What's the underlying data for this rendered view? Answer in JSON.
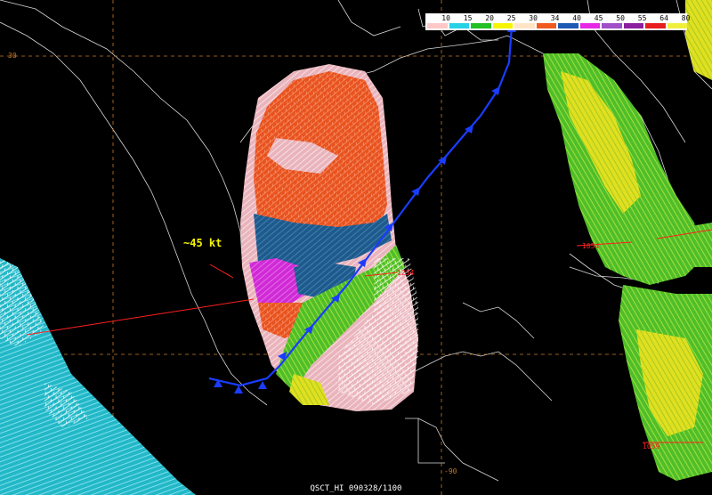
{
  "legend": {
    "items": [
      {
        "value": "10",
        "color": "#ffc8c8"
      },
      {
        "value": "15",
        "color": "#28d2e6"
      },
      {
        "value": "20",
        "color": "#23c023"
      },
      {
        "value": "25",
        "color": "#f5f500"
      },
      {
        "value": "30",
        "color": "#ffe4c8"
      },
      {
        "value": "34",
        "color": "#f05a1e"
      },
      {
        "value": "40",
        "color": "#1e5ab4"
      },
      {
        "value": "45",
        "color": "#e628e6"
      },
      {
        "value": "50",
        "color": "#a050c8"
      },
      {
        "value": "55",
        "color": "#8c1ea0"
      },
      {
        "value": "64",
        "color": "#e61e1e"
      },
      {
        "value": "80",
        "color": "#f0f03c"
      }
    ]
  },
  "annotation": {
    "text": "~45 kt",
    "color": "#f5f500"
  },
  "grid_labels": {
    "lat": "30",
    "lon": "-90"
  },
  "time_labels": {
    "label1": "1234",
    "label2": "1054",
    "label3": "1059"
  },
  "footer": {
    "text": "QSCT_HI  090328/1100"
  }
}
